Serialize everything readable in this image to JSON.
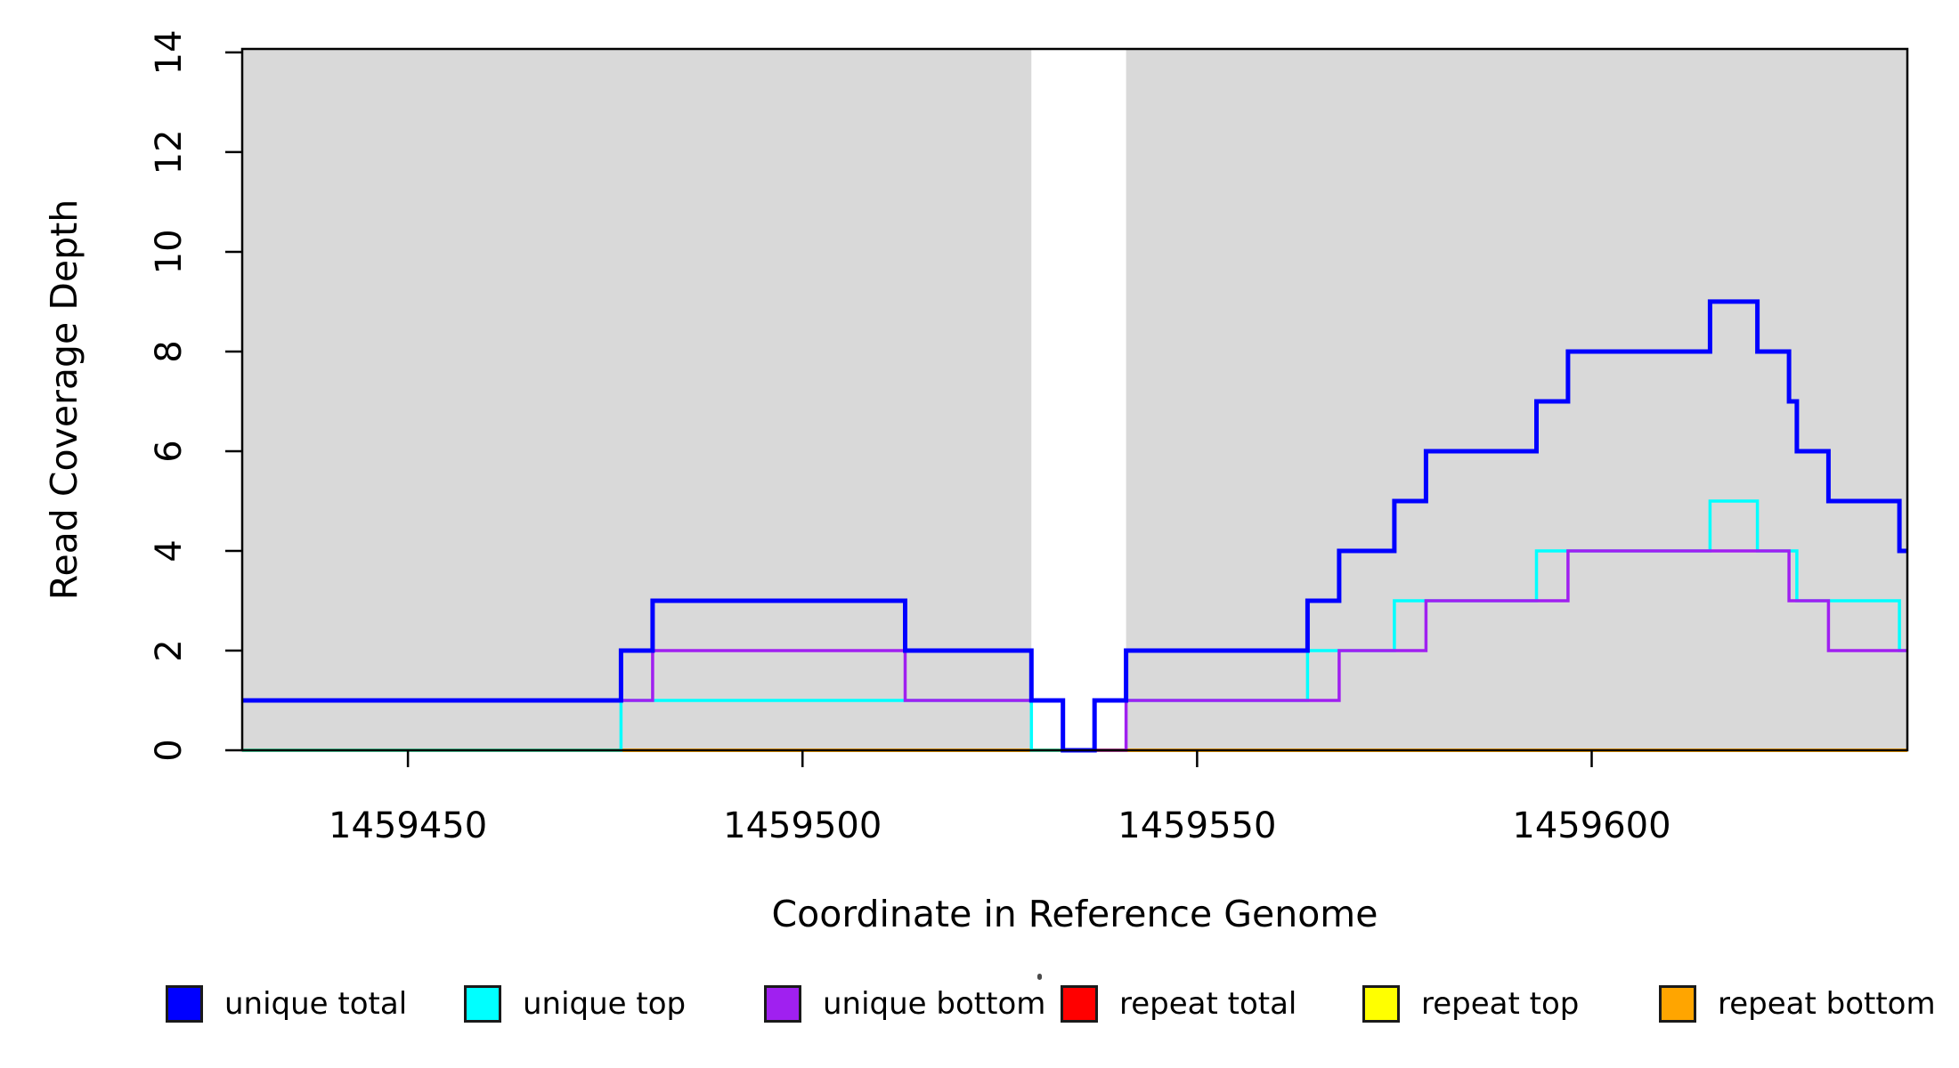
{
  "x_axis": {
    "label": "Coordinate in Reference Genome",
    "ticks": [
      "1459450",
      "1459500",
      "1459550",
      "1459600"
    ]
  },
  "y_axis": {
    "label": "Read Coverage Depth",
    "ticks": [
      "0",
      "2",
      "4",
      "6",
      "8",
      "10",
      "12",
      "14"
    ]
  },
  "legend": {
    "items": [
      {
        "label": "unique total",
        "color": "#0000FF"
      },
      {
        "label": "unique top",
        "color": "#00FFFF"
      },
      {
        "label": "unique bottom",
        "color": "#A020F0"
      },
      {
        "label": "repeat total",
        "color": "#FF0000"
      },
      {
        "label": "repeat top",
        "color": "#FFFF00"
      },
      {
        "label": "repeat bottom",
        "color": "#FFA500"
      }
    ]
  },
  "chart_data": {
    "type": "line",
    "step": true,
    "title": "",
    "xlabel": "Coordinate in Reference Genome",
    "ylabel": "Read Coverage Depth",
    "xlim": [
      1459429,
      1459640
    ],
    "ylim": [
      0,
      14.07
    ],
    "x_ticks": [
      1459450,
      1459500,
      1459550,
      1459600
    ],
    "y_ticks": [
      0,
      2,
      4,
      6,
      8,
      10,
      12,
      14
    ],
    "grid": false,
    "legend_position": "bottom",
    "plot_background": "#FFFFFF",
    "shaded_regions": [
      {
        "x_start": 1459429,
        "x_end": 1459529,
        "color": "#D9D9D9"
      },
      {
        "x_start": 1459541,
        "x_end": 1459640,
        "color": "#D9D9D9"
      }
    ],
    "draw_order": [
      "repeat total",
      "repeat top",
      "repeat bottom",
      "unique top",
      "unique bottom",
      "unique total"
    ],
    "series": [
      {
        "name": "unique total",
        "color": "#0000FF",
        "line_width": 5,
        "breakpoints": [
          [
            1459429,
            1
          ],
          [
            1459477,
            2
          ],
          [
            1459481,
            3
          ],
          [
            1459513,
            2
          ],
          [
            1459529,
            1
          ],
          [
            1459533,
            0
          ],
          [
            1459537,
            1
          ],
          [
            1459541,
            2
          ],
          [
            1459564,
            3
          ],
          [
            1459568,
            4
          ],
          [
            1459575,
            5
          ],
          [
            1459579,
            6
          ],
          [
            1459593,
            7
          ],
          [
            1459597,
            8
          ],
          [
            1459615,
            9
          ],
          [
            1459621,
            8
          ],
          [
            1459625,
            7
          ],
          [
            1459626,
            6
          ],
          [
            1459630,
            5
          ],
          [
            1459639,
            4
          ]
        ]
      },
      {
        "name": "unique top",
        "color": "#00FFFF",
        "line_width": 3.5,
        "breakpoints": [
          [
            1459429,
            0
          ],
          [
            1459477,
            1
          ],
          [
            1459529,
            0
          ],
          [
            1459537,
            1
          ],
          [
            1459564,
            2
          ],
          [
            1459575,
            3
          ],
          [
            1459593,
            4
          ],
          [
            1459615,
            5
          ],
          [
            1459621,
            4
          ],
          [
            1459626,
            3
          ],
          [
            1459639,
            2
          ]
        ]
      },
      {
        "name": "unique bottom",
        "color": "#A020F0",
        "line_width": 3.5,
        "breakpoints": [
          [
            1459429,
            1
          ],
          [
            1459481,
            2
          ],
          [
            1459513,
            1
          ],
          [
            1459533,
            0
          ],
          [
            1459541,
            1
          ],
          [
            1459568,
            2
          ],
          [
            1459579,
            3
          ],
          [
            1459597,
            4
          ],
          [
            1459625,
            3
          ],
          [
            1459630,
            2
          ]
        ]
      },
      {
        "name": "repeat total",
        "color": "#FF0000",
        "line_width": 3.5,
        "breakpoints": [
          [
            1459429,
            0
          ]
        ]
      },
      {
        "name": "repeat top",
        "color": "#FFFF00",
        "line_width": 3.5,
        "breakpoints": [
          [
            1459429,
            0
          ]
        ]
      },
      {
        "name": "repeat bottom",
        "color": "#FFA500",
        "line_width": 4,
        "breakpoints": [
          [
            1459429,
            0
          ]
        ]
      }
    ]
  }
}
